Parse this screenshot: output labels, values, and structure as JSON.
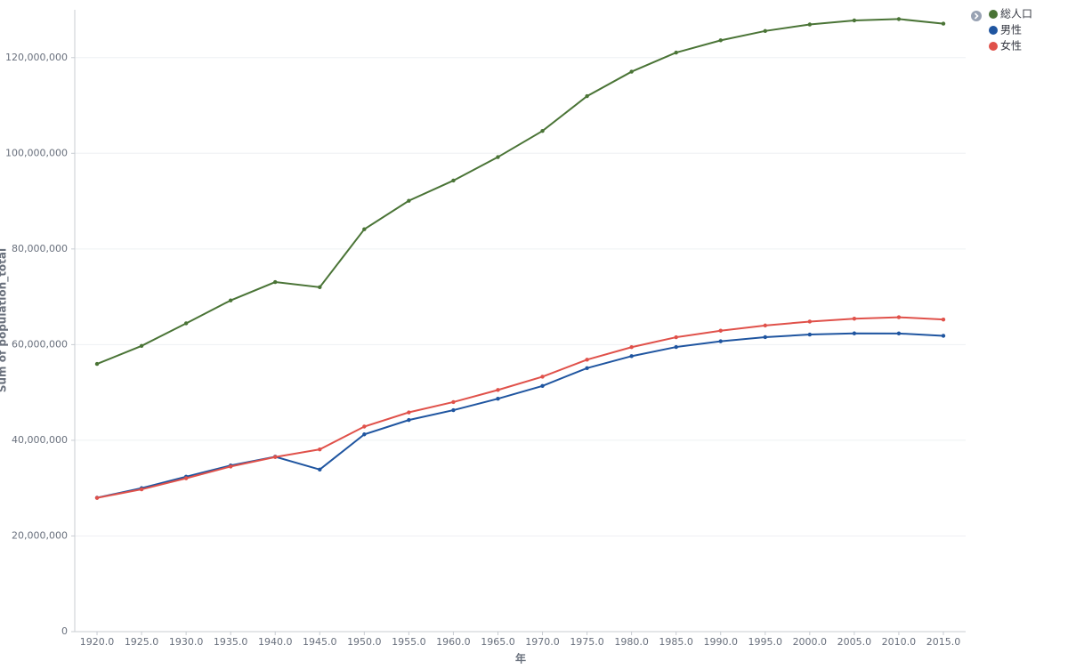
{
  "chart_data": {
    "type": "line",
    "y_label": "Sum of population_total",
    "x_label": "年",
    "categories": [
      "1920.0",
      "1925.0",
      "1930.0",
      "1935.0",
      "1940.0",
      "1945.0",
      "1950.0",
      "1955.0",
      "1960.0",
      "1965.0",
      "1970.0",
      "1975.0",
      "1980.0",
      "1985.0",
      "1990.0",
      "1995.0",
      "2000.0",
      "2005.0",
      "2010.0",
      "2015.0"
    ],
    "series": [
      {
        "name": "総人口",
        "color": "#4a7436",
        "values": [
          55960000,
          59740000,
          64450000,
          69250000,
          73080000,
          72000000,
          84120000,
          90080000,
          94300000,
          99210000,
          104670000,
          111940000,
          117060000,
          121050000,
          123610000,
          125570000,
          126930000,
          127770000,
          128060000,
          127100000
        ]
      },
      {
        "name": "男性",
        "color": "#1f55a0",
        "values": [
          27990000,
          29990000,
          32390000,
          34730000,
          36570000,
          33890000,
          41240000,
          44240000,
          46300000,
          48690000,
          51370000,
          55090000,
          57590000,
          59500000,
          60700000,
          61570000,
          62110000,
          62350000,
          62330000,
          61840000
        ]
      },
      {
        "name": "女性",
        "color": "#e0514a",
        "values": [
          27960000,
          29750000,
          32060000,
          34520000,
          36500000,
          38100000,
          42870000,
          45840000,
          48000000,
          50520000,
          53300000,
          56850000,
          59470000,
          61550000,
          62910000,
          64000000,
          64820000,
          65420000,
          65730000,
          65250000
        ]
      }
    ],
    "ylim": [
      0,
      130000000
    ],
    "yticks": [
      0,
      {
        "value": 20000000,
        "label": "20,000,000"
      },
      {
        "value": 40000000,
        "label": "40,000,000"
      },
      {
        "value": 60000000,
        "label": "60,000,000"
      },
      {
        "value": 80000000,
        "label": "80,000,000"
      },
      {
        "value": 100000000,
        "label": "100,000,000"
      },
      {
        "value": 120000000,
        "label": "120,000,000"
      }
    ],
    "grid": true,
    "legend": "top-right"
  }
}
